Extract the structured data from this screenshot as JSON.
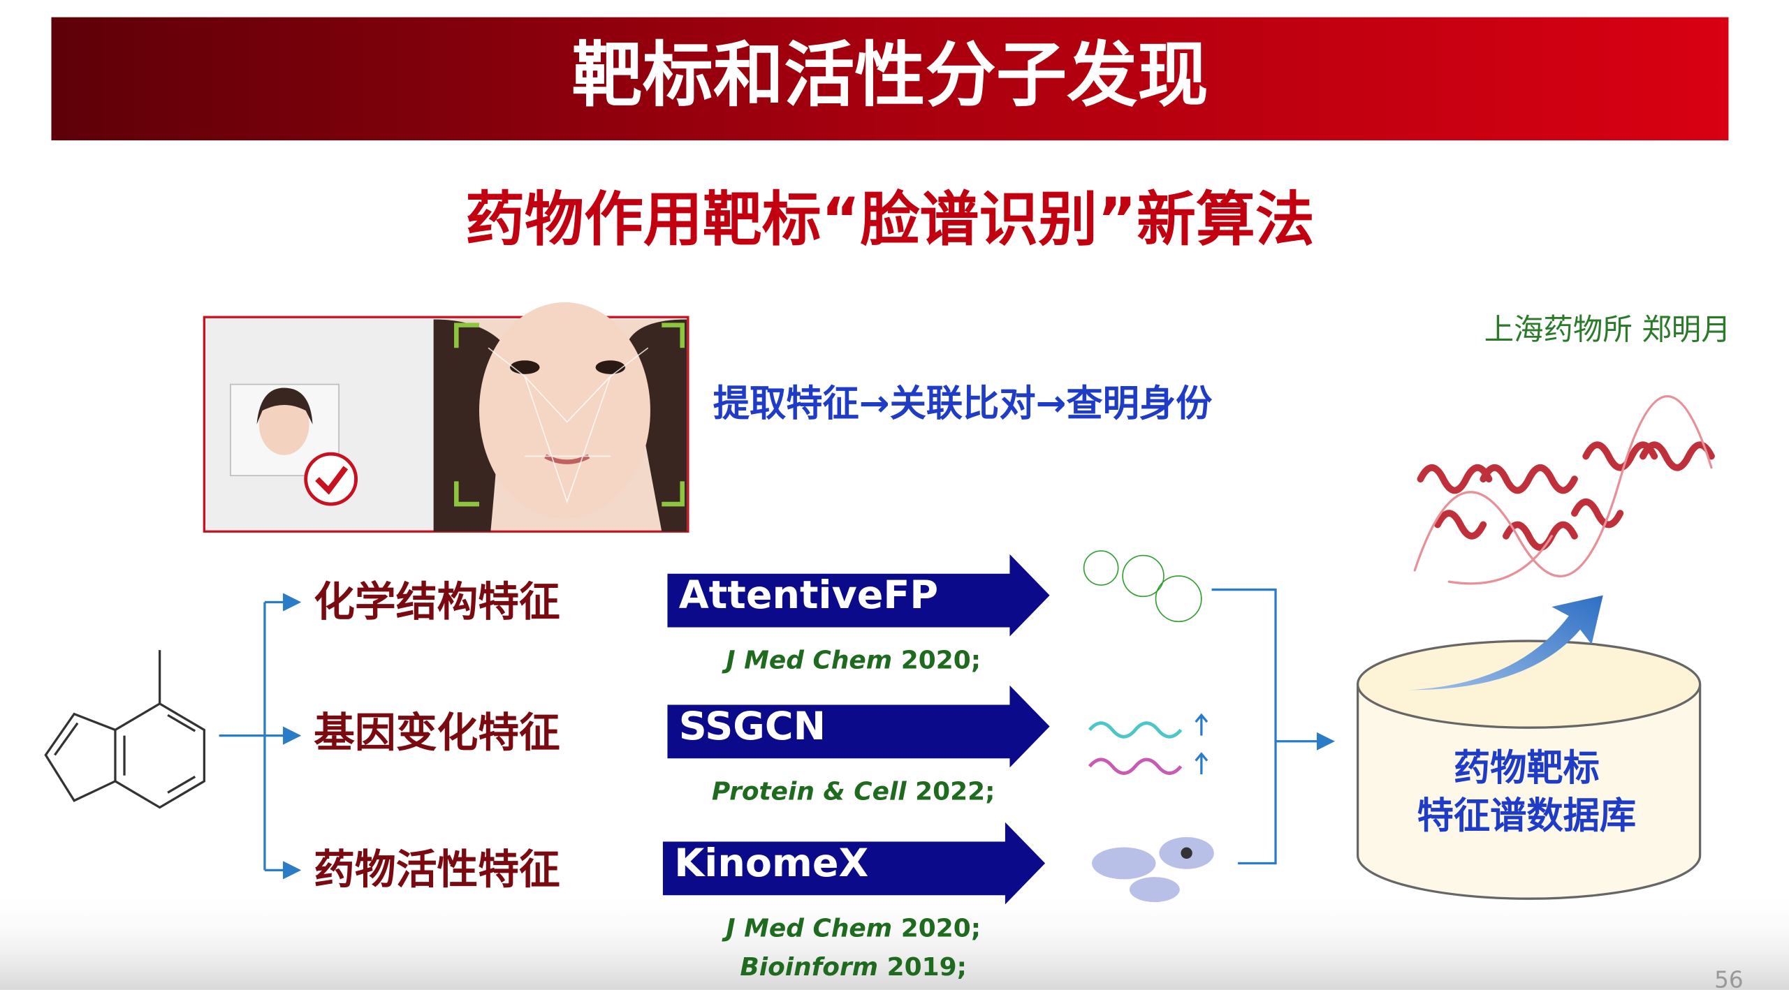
{
  "header": {
    "title": "靶标和活性分子发现"
  },
  "subtitle": "药物作用靶标“脸谱识别”新算法",
  "author": "上海药物所  郑明月",
  "face_recognition": {
    "caption": "提取特征→关联比对→查明身份"
  },
  "features": [
    {
      "label": "化学结构特征",
      "method": "AttentiveFP",
      "references": [
        {
          "journal": "J Med Chem",
          "year": "2020;"
        }
      ]
    },
    {
      "label": "基因变化特征",
      "method": "SSGCN",
      "references": [
        {
          "journal": "Protein & Cell",
          "year": "2022;"
        }
      ]
    },
    {
      "label": "药物活性特征",
      "method": "KinomeX",
      "references": [
        {
          "journal": "J Med Chem",
          "year": "2020;"
        },
        {
          "journal": "Bioinform",
          "year": "2019;"
        }
      ]
    }
  ],
  "database": {
    "lines": [
      "药物靶标",
      "特征谱数据库"
    ]
  },
  "page_number": "56"
}
